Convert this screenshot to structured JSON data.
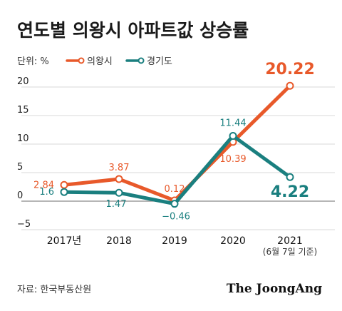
{
  "title": "연도별 의왕시 아파트값 상승률",
  "unit_label": "단위: %",
  "source": "자료: 한국부동산원",
  "logo": "The JoongAng",
  "chart_data": {
    "type": "line",
    "x": [
      "2017년",
      "2018",
      "2019",
      "2020",
      "2021"
    ],
    "x_note": "(6월 7일 기준)",
    "ylim": [
      -5,
      20
    ],
    "yticks": [
      -5,
      0,
      5,
      10,
      15,
      20
    ],
    "ytick_labels": [
      "−5",
      "0",
      "5",
      "10",
      "15",
      "20"
    ],
    "grid": true,
    "legend": "top-left",
    "series": [
      {
        "name": "의왕시",
        "color": "#e8592a",
        "values": [
          2.84,
          3.87,
          0.12,
          10.39,
          20.22
        ],
        "labels": [
          "2.84",
          "3.87",
          "0.12",
          "10.39",
          "20.22"
        ]
      },
      {
        "name": "경기도",
        "color": "#1a7f7f",
        "values": [
          1.6,
          1.47,
          -0.46,
          11.44,
          4.22
        ],
        "labels": [
          "1.6",
          "1.47",
          "−0.46",
          "11.44",
          "4.22"
        ]
      }
    ]
  }
}
